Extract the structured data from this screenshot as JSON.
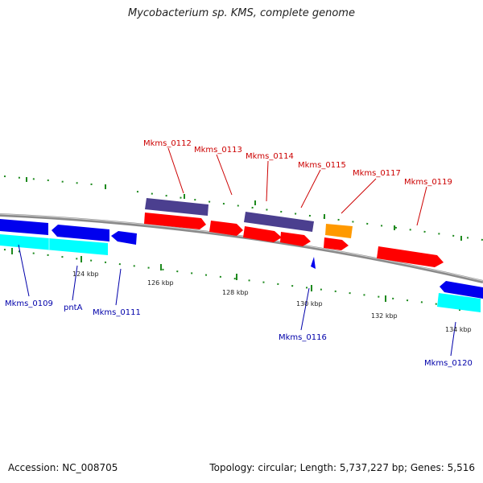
{
  "title": "Mycobacterium sp. KMS, complete genome",
  "footer": {
    "accession": "Accession: NC_008705",
    "stats": "Topology: circular; Length: 5,737,227 bp; Genes: 5,516"
  },
  "colors": {
    "backbone": "#8a8a8a",
    "forward_cds": "#ff0000",
    "reverse_cds": "#0000ee",
    "forward_rna_like": "#4b3f8f",
    "reverse_rna_like": "#00ffff",
    "other_feature": "#ff9900",
    "tick": "#1e8a1e",
    "label_forward": "#cc0000",
    "label_reverse": "#0000aa"
  },
  "scale_labels": [
    "124 kbp",
    "126 kbp",
    "128 kbp",
    "130 kbp",
    "132 kbp",
    "134 kbp"
  ],
  "gene_labels_top": [
    "Mkms_0112",
    "Mkms_0113",
    "Mkms_0114",
    "Mkms_0115",
    "Mkms_0117",
    "Mkms_0119"
  ],
  "gene_labels_bottom": [
    "Mkms_0109",
    "pntA",
    "Mkms_0111",
    "Mkms_0116",
    "Mkms_0120"
  ]
}
